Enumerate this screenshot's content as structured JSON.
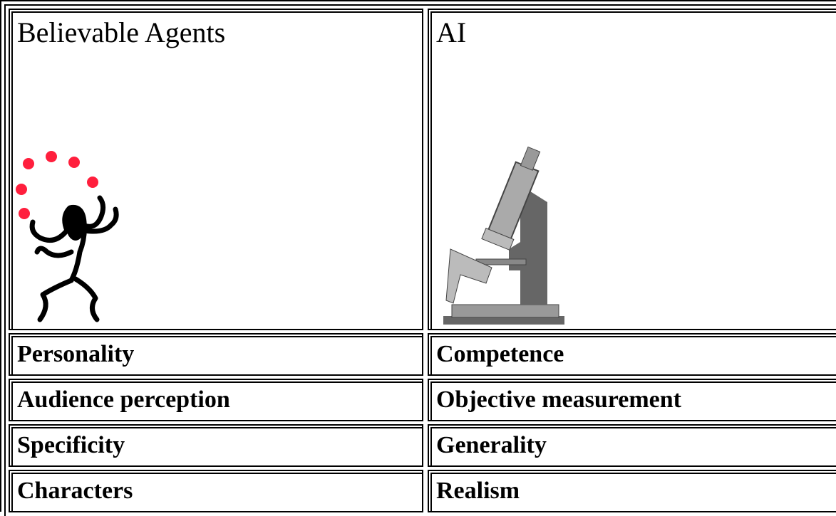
{
  "table": {
    "header": [
      "Believable Agents",
      "AI"
    ],
    "rows": [
      [
        "Personality",
        "Competence"
      ],
      [
        "Audience perception",
        "Objective measurement"
      ],
      [
        "Specificity",
        "Generality"
      ],
      [
        "Characters",
        "Realism"
      ]
    ]
  }
}
